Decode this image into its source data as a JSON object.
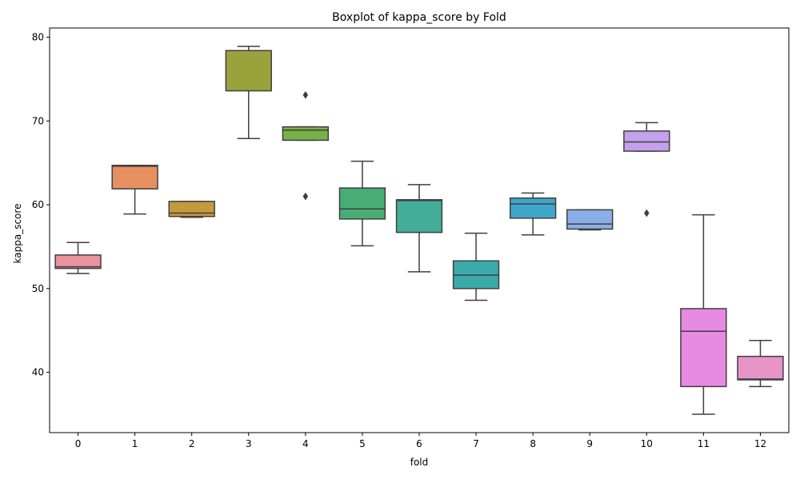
{
  "chart_data": {
    "type": "boxplot",
    "title": "Boxplot of kappa_score by Fold",
    "xlabel": "fold",
    "ylabel": "kappa_score",
    "ylim": [
      32.8,
      81.1
    ],
    "yticks": [
      40,
      50,
      60,
      70,
      80
    ],
    "grid": false,
    "categories": [
      "0",
      "1",
      "2",
      "3",
      "4",
      "5",
      "6",
      "7",
      "8",
      "9",
      "10",
      "11",
      "12"
    ],
    "series": [
      {
        "category": "0",
        "whisker_low": 51.8,
        "q1": 52.4,
        "median": 52.6,
        "q3": 54.0,
        "whisker_high": 55.5,
        "outliers": [],
        "color": "#e9939e"
      },
      {
        "category": "1",
        "whisker_low": 58.9,
        "q1": 61.9,
        "median": 64.6,
        "q3": 64.7,
        "whisker_high": 64.7,
        "outliers": [],
        "color": "#e69062"
      },
      {
        "category": "2",
        "whisker_low": 58.5,
        "q1": 58.6,
        "median": 59.0,
        "q3": 60.4,
        "whisker_high": 60.4,
        "outliers": [],
        "color": "#c59a3e"
      },
      {
        "category": "3",
        "whisker_low": 67.9,
        "q1": 73.6,
        "median": 78.4,
        "q3": 78.4,
        "whisker_high": 78.9,
        "outliers": [],
        "color": "#9aa23c"
      },
      {
        "category": "4",
        "whisker_low": 67.7,
        "q1": 67.7,
        "median": 68.9,
        "q3": 69.3,
        "whisker_high": 69.3,
        "outliers": [
          73.1,
          61.0
        ],
        "color": "#78b246"
      },
      {
        "category": "5",
        "whisker_low": 55.1,
        "q1": 58.3,
        "median": 59.5,
        "q3": 62.0,
        "whisker_high": 65.2,
        "outliers": [],
        "color": "#48ad75"
      },
      {
        "category": "6",
        "whisker_low": 52.0,
        "q1": 56.7,
        "median": 60.5,
        "q3": 60.6,
        "whisker_high": 62.4,
        "outliers": [],
        "color": "#43ad97"
      },
      {
        "category": "7",
        "whisker_low": 48.6,
        "q1": 50.0,
        "median": 51.6,
        "q3": 53.3,
        "whisker_high": 56.6,
        "outliers": [],
        "color": "#3baaaa"
      },
      {
        "category": "8",
        "whisker_low": 56.4,
        "q1": 58.4,
        "median": 60.1,
        "q3": 60.8,
        "whisker_high": 61.4,
        "outliers": [],
        "color": "#3ea7c9"
      },
      {
        "category": "9",
        "whisker_low": 57.0,
        "q1": 57.1,
        "median": 57.7,
        "q3": 59.4,
        "whisker_high": 59.4,
        "outliers": [],
        "color": "#8caee8"
      },
      {
        "category": "10",
        "whisker_low": 66.4,
        "q1": 66.4,
        "median": 67.5,
        "q3": 68.8,
        "whisker_high": 69.8,
        "outliers": [
          59.0
        ],
        "color": "#c5a0ec"
      },
      {
        "category": "11",
        "whisker_low": 35.0,
        "q1": 38.3,
        "median": 44.9,
        "q3": 47.6,
        "whisker_high": 58.8,
        "outliers": [],
        "color": "#e78ae1"
      },
      {
        "category": "12",
        "whisker_low": 38.3,
        "q1": 39.1,
        "median": 39.2,
        "q3": 41.9,
        "whisker_high": 43.8,
        "outliers": [],
        "color": "#e794c8"
      }
    ]
  }
}
